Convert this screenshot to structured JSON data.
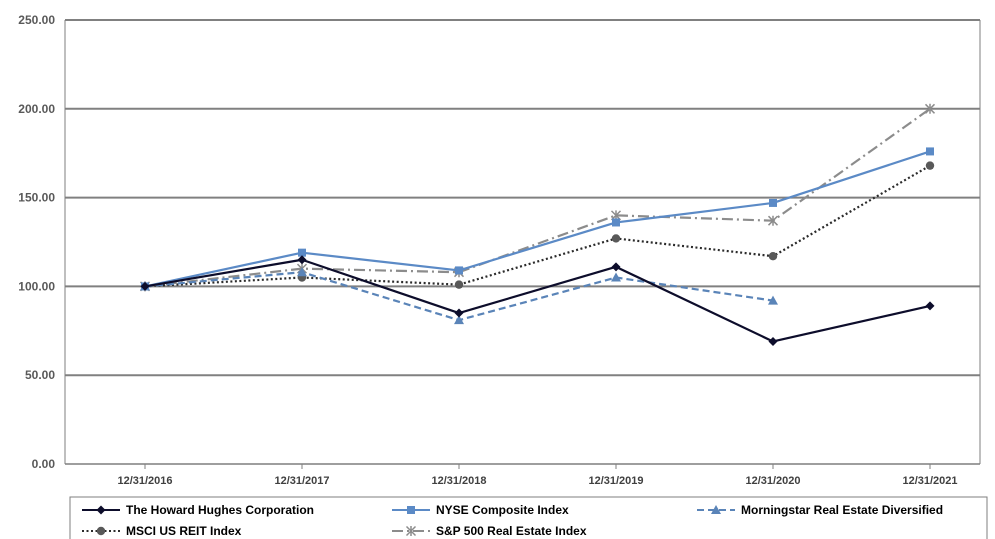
{
  "chart_data": {
    "type": "line",
    "categories": [
      "12/31/2016",
      "12/31/2017",
      "12/31/2018",
      "12/31/2019",
      "12/31/2020",
      "12/31/2021"
    ],
    "y_ticks": [
      "0.00",
      "50.00",
      "100.00",
      "150.00",
      "200.00",
      "250.00"
    ],
    "ylim": [
      0,
      250
    ],
    "grid": true,
    "legend_position": "bottom",
    "series": [
      {
        "name": "The Howard Hughes Corporation",
        "values": [
          100,
          115,
          85,
          111,
          69,
          89
        ],
        "color": "#0d0d2b",
        "dash": "solid",
        "marker": "diamond"
      },
      {
        "name": "NYSE Composite Index",
        "values": [
          100,
          119,
          109,
          136,
          147,
          176
        ],
        "color": "#5b8ac6",
        "dash": "solid",
        "marker": "square"
      },
      {
        "name": "Morningstar Real Estate Diversified",
        "values": [
          100,
          108,
          81,
          105,
          92,
          null
        ],
        "color": "#5a84b8",
        "dash": "dashed",
        "marker": "triangle"
      },
      {
        "name": "MSCI US REIT Index",
        "values": [
          100,
          105,
          101,
          127,
          117,
          168
        ],
        "color": "#2b2b2b",
        "dash": "dotted",
        "marker": "circle"
      },
      {
        "name": "S&P 500 Real Estate Index",
        "values": [
          100,
          110,
          108,
          140,
          137,
          200
        ],
        "color": "#8c8c8c",
        "dash": "dashdot",
        "marker": "star"
      }
    ]
  }
}
